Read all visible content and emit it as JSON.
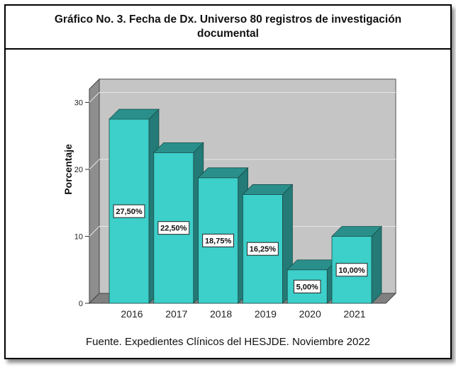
{
  "chart_data": {
    "type": "bar",
    "title": "Gráfico No. 3. Fecha de Dx. Universo 80 registros de investigación documental",
    "ylabel": "Porcentaje",
    "xlabel": "",
    "categories": [
      "2016",
      "2017",
      "2018",
      "2019",
      "2020",
      "2021"
    ],
    "values": [
      27.5,
      22.5,
      18.75,
      16.25,
      5.0,
      10.0
    ],
    "data_labels": [
      "27,50%",
      "22,50%",
      "18,75%",
      "16,25%",
      "5,00%",
      "10,00%"
    ],
    "yticks": [
      "0",
      "10",
      "20",
      "30"
    ],
    "ylim": [
      0,
      32
    ],
    "grid": true,
    "style": "3d",
    "colors": {
      "bar_front": "#3dcfc9",
      "bar_top": "#2a8f8a",
      "bar_side": "#237a76",
      "plot_back": "#c5c5c5",
      "floor": "#808080"
    }
  },
  "source_note": "Fuente. Expedientes Clínicos del HESJDE. Noviembre 2022"
}
